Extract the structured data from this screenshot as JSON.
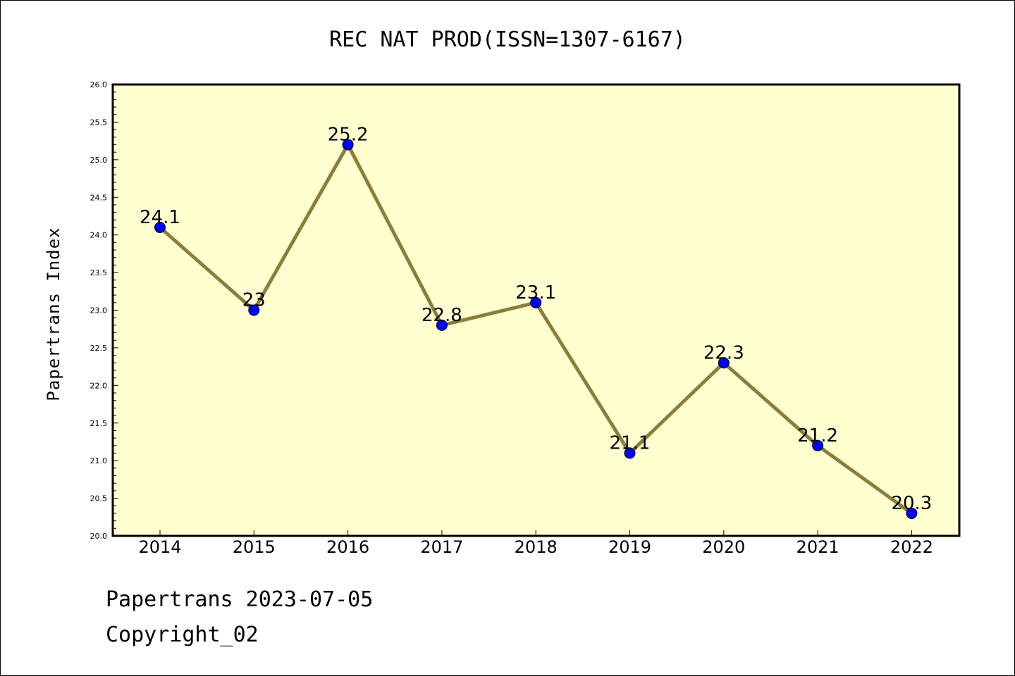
{
  "chart_data": {
    "type": "line",
    "title": "REC NAT PROD(ISSN=1307-6167)",
    "xlabel": "",
    "ylabel": "Papertrans Index",
    "categories": [
      "2014",
      "2015",
      "2016",
      "2017",
      "2018",
      "2019",
      "2020",
      "2021",
      "2022"
    ],
    "values": [
      24.1,
      23,
      25.2,
      22.8,
      23.1,
      21.1,
      22.3,
      21.2,
      20.3
    ],
    "data_labels": [
      "24.1",
      "23",
      "25.2",
      "22.8",
      "23.1",
      "21.1",
      "22.3",
      "21.2",
      "20.3"
    ],
    "ylim": [
      20.0,
      26.0
    ],
    "yticks": [
      "20.0",
      "20.5",
      "21.0",
      "21.5",
      "22.0",
      "22.5",
      "23.0",
      "23.5",
      "24.0",
      "24.5",
      "25.0",
      "25.5",
      "26.0"
    ],
    "grid": false,
    "legend": "none",
    "colors": {
      "plot_background": "#ffffd0",
      "line": "#8b7d3a",
      "marker": "#0000ff"
    }
  },
  "footer": {
    "line1": "Papertrans 2023-07-05",
    "line2": "Copyright_02"
  }
}
